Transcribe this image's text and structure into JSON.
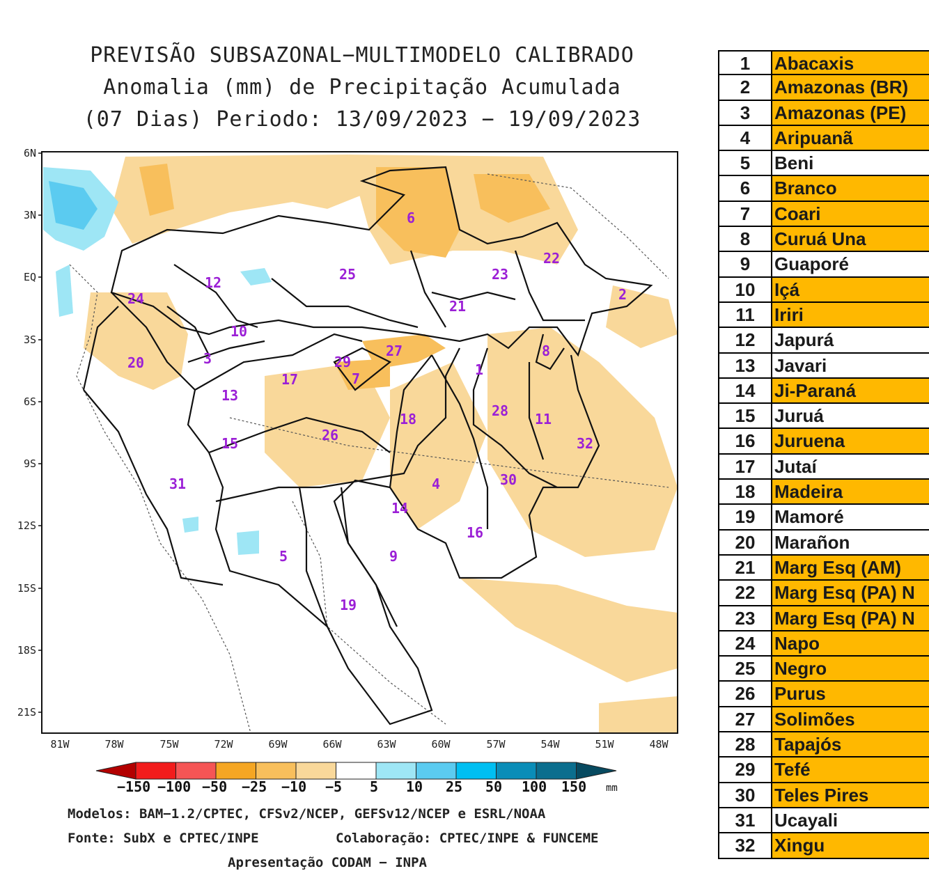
{
  "title": {
    "line1": "PREVISÃO SUBSAZONAL−MULTIMODELO CALIBRADO",
    "line2": "Anomalia (mm) de Precipitação Acumulada",
    "line3": "(07 Dias) Periodo: 13/09/2023 − 19/09/2023"
  },
  "axes": {
    "lat_labels": [
      "6N",
      "3N",
      "EQ",
      "3S",
      "6S",
      "9S",
      "12S",
      "15S",
      "18S",
      "21S"
    ],
    "lon_labels": [
      "81W",
      "78W",
      "75W",
      "72W",
      "69W",
      "66W",
      "63W",
      "60W",
      "57W",
      "54W",
      "51W",
      "48W"
    ]
  },
  "colorbar": {
    "unit": "mm",
    "labels": [
      "−150",
      "−100",
      "−50",
      "−25",
      "−10",
      "−5",
      "5",
      "10",
      "25",
      "50",
      "100",
      "150"
    ],
    "colors": [
      "#B30000",
      "#F21C1C",
      "#F55555",
      "#F5A623",
      "#F8BF5C",
      "#F9D89A",
      "#FFFFFF",
      "#9EE6F5",
      "#5BCBF0",
      "#00BFF2",
      "#0A8DB8",
      "#0B6E8E",
      "#074A60"
    ]
  },
  "basin_numbers": [
    "1",
    "2",
    "3",
    "4",
    "5",
    "6",
    "7",
    "8",
    "9",
    "10",
    "11",
    "12",
    "13",
    "14",
    "15",
    "16",
    "17",
    "18",
    "19",
    "20",
    "21",
    "22",
    "23",
    "24",
    "25",
    "26",
    "27",
    "28",
    "29",
    "30",
    "31",
    "32"
  ],
  "footer": {
    "line1": "Modelos: BAM−1.2/CPTEC, CFSv2/NCEP, GEFSv12/NCEP e ESRL/NOAA",
    "line2a": "Fonte: SubX e CPTEC/INPE",
    "line2b": "Colaboração: CPTEC/INPE & FUNCEME",
    "line3": "Apresentação CODAM − INPA"
  },
  "legend": [
    {
      "num": "1",
      "name": "Abacaxis",
      "highlight": true
    },
    {
      "num": "2",
      "name": "Amazonas (BR)",
      "highlight": true
    },
    {
      "num": "3",
      "name": "Amazonas (PE)",
      "highlight": true
    },
    {
      "num": "4",
      "name": "Aripuanã",
      "highlight": true
    },
    {
      "num": "5",
      "name": "Beni",
      "highlight": false
    },
    {
      "num": "6",
      "name": "Branco",
      "highlight": true
    },
    {
      "num": "7",
      "name": "Coari",
      "highlight": true
    },
    {
      "num": "8",
      "name": "Curuá Una",
      "highlight": true
    },
    {
      "num": "9",
      "name": "Guaporé",
      "highlight": false
    },
    {
      "num": "10",
      "name": "Içá",
      "highlight": true
    },
    {
      "num": "11",
      "name": "Iriri",
      "highlight": true
    },
    {
      "num": "12",
      "name": "Japurá",
      "highlight": false
    },
    {
      "num": "13",
      "name": "Javari",
      "highlight": false
    },
    {
      "num": "14",
      "name": "Ji-Paraná",
      "highlight": true
    },
    {
      "num": "15",
      "name": "Juruá",
      "highlight": false
    },
    {
      "num": "16",
      "name": "Juruena",
      "highlight": true
    },
    {
      "num": "17",
      "name": "Jutaí",
      "highlight": false
    },
    {
      "num": "18",
      "name": "Madeira",
      "highlight": true
    },
    {
      "num": "19",
      "name": "Mamoré",
      "highlight": false
    },
    {
      "num": "20",
      "name": "Marañon",
      "highlight": false
    },
    {
      "num": "21",
      "name": "Marg Esq (AM)",
      "highlight": true
    },
    {
      "num": "22",
      "name": "Marg Esq (PA) N",
      "highlight": true
    },
    {
      "num": "23",
      "name": "Marg Esq (PA) N",
      "highlight": true
    },
    {
      "num": "24",
      "name": "Napo",
      "highlight": true
    },
    {
      "num": "25",
      "name": "Negro",
      "highlight": true
    },
    {
      "num": "26",
      "name": "Purus",
      "highlight": true
    },
    {
      "num": "27",
      "name": "Solimões",
      "highlight": true
    },
    {
      "num": "28",
      "name": "Tapajós",
      "highlight": true
    },
    {
      "num": "29",
      "name": "Tefé",
      "highlight": true
    },
    {
      "num": "30",
      "name": "Teles Pires",
      "highlight": true
    },
    {
      "num": "31",
      "name": "Ucayali",
      "highlight": false
    },
    {
      "num": "32",
      "name": "Xingu",
      "highlight": true
    }
  ]
}
